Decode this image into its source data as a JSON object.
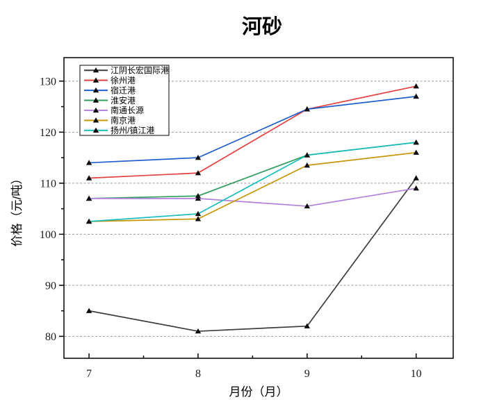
{
  "chart_data": {
    "type": "line",
    "title": "河砂",
    "xlabel": "月份（月）",
    "ylabel": "价格（元/吨）",
    "x": [
      7,
      8,
      9,
      10
    ],
    "series": [
      {
        "name": "江阴长宏国际港",
        "color": "#3d3d3d",
        "values": [
          85,
          81,
          82,
          111
        ]
      },
      {
        "name": "徐州港",
        "color": "#e54040",
        "values": [
          111,
          112,
          124.5,
          129
        ]
      },
      {
        "name": "宿迁港",
        "color": "#1e5ecc",
        "values": [
          114,
          115,
          124.5,
          127
        ]
      },
      {
        "name": "淮安港",
        "color": "#2e9e5e",
        "values": [
          107,
          107.5,
          115.5,
          118
        ]
      },
      {
        "name": "南通长源",
        "color": "#b27fdc",
        "values": [
          107,
          107,
          105.5,
          109
        ]
      },
      {
        "name": "南京港",
        "color": "#c8960a",
        "values": [
          102.5,
          103,
          113.5,
          116
        ]
      },
      {
        "name": "扬州/镇江港",
        "color": "#17bcbc",
        "values": [
          102.5,
          104,
          115.5,
          118
        ]
      }
    ],
    "xlim": [
      6.77,
      10.34
    ],
    "ylim": [
      75.7,
      134.6
    ],
    "xticks": [
      7,
      8,
      9,
      10
    ],
    "yticks": [
      80,
      90,
      100,
      110,
      120,
      130
    ],
    "x_minor_ticks": [
      7.5,
      8.5,
      9.5
    ],
    "y_minor_ticks": [
      85,
      95,
      105,
      115,
      125
    ],
    "grid": "horizontal-dashed",
    "grid_color": "#999999",
    "axis_color": "#000000",
    "marker": "triangle-up",
    "marker_color": "#0d0d0d",
    "legend_position": "top-left"
  }
}
